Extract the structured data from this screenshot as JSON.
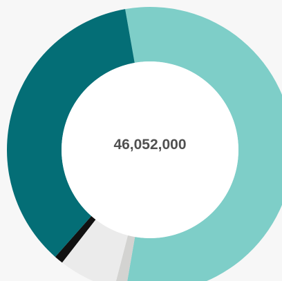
{
  "chart_data": {
    "type": "pie",
    "variant": "donut",
    "center_label": "46,052,000",
    "slices": [
      {
        "value": 0.555,
        "color": "#7ecec8"
      },
      {
        "value": 0.013,
        "color": "#d3d3d1"
      },
      {
        "value": 0.065,
        "color": "#ebebeb"
      },
      {
        "value": 0.01,
        "color": "#111111"
      },
      {
        "value": 0.357,
        "color": "#046e76"
      }
    ]
  }
}
